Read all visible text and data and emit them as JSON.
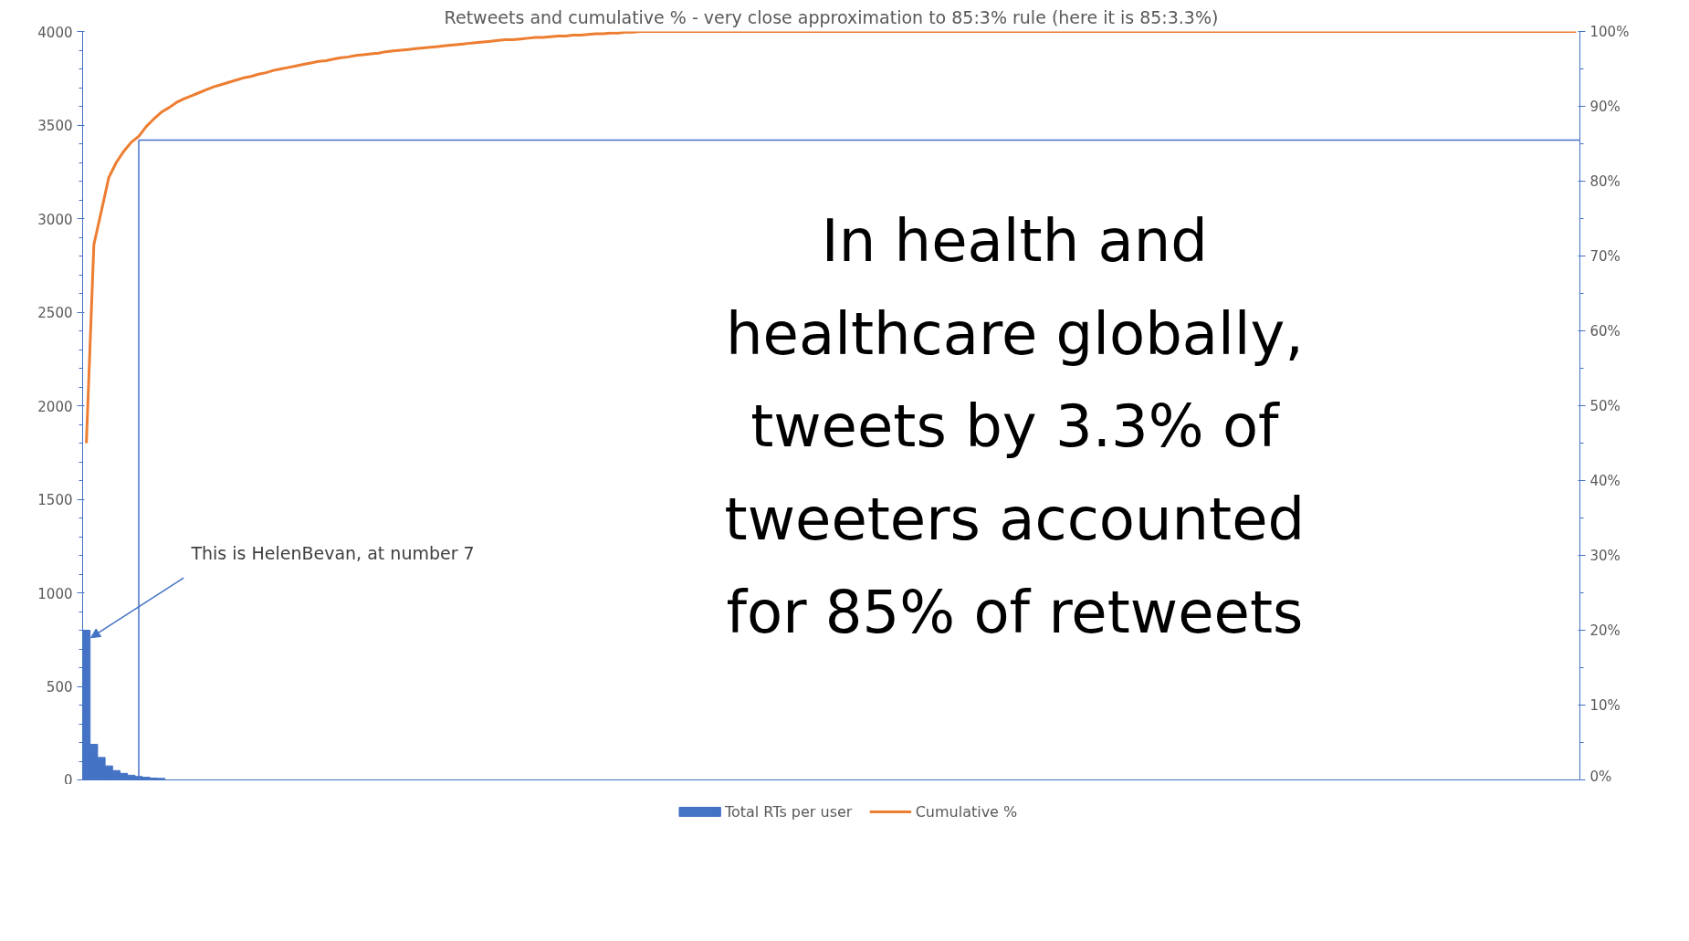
{
  "chart_data": {
    "type": "bar",
    "title": "Retweets and cumulative % - very close approximation to 85:3% rule (here it is 85:3.3%)",
    "categories": [
      null,
      null,
      null,
      null,
      null,
      null,
      null,
      null,
      null,
      null,
      null,
      null,
      null,
      null,
      null,
      null,
      null,
      null,
      null,
      null,
      null,
      null,
      null,
      null,
      null,
      null,
      null,
      null,
      null,
      null,
      null,
      null,
      null,
      null,
      null,
      null,
      null,
      null,
      null,
      null,
      null,
      null,
      null,
      null,
      null,
      null,
      null,
      null,
      null,
      null,
      null,
      null,
      null,
      null,
      null,
      null,
      null,
      null,
      null,
      null,
      null,
      null,
      null,
      null,
      null,
      null,
      null,
      null,
      null,
      null,
      null,
      null,
      null,
      null,
      null,
      null,
      null,
      null,
      null,
      null,
      null,
      null,
      null,
      null,
      null,
      null,
      null,
      null,
      null,
      null,
      null,
      null,
      null,
      null,
      null,
      null,
      null,
      null,
      null,
      null,
      null,
      null,
      null,
      null,
      null,
      null,
      null,
      null,
      null,
      null,
      null,
      null,
      null,
      null,
      null,
      null,
      null,
      null,
      null,
      null,
      null,
      null,
      null,
      null,
      null,
      null,
      null,
      null,
      null,
      null,
      null,
      null,
      null,
      null,
      null,
      null,
      null,
      null,
      null,
      null,
      null,
      null,
      null,
      null,
      null,
      null,
      null,
      null,
      null,
      null,
      null,
      null,
      null,
      null,
      null,
      null,
      null,
      null,
      null,
      null,
      null,
      null,
      null,
      null,
      null,
      null,
      null,
      null,
      null,
      null,
      null,
      null,
      null,
      null,
      null,
      null,
      null,
      null,
      null,
      null,
      null,
      null,
      null,
      null,
      null,
      null,
      null,
      null,
      null,
      null,
      null,
      null,
      null,
      null,
      null,
      null,
      null,
      null,
      null,
      null
    ],
    "series": [
      {
        "name": "Total RTs per user",
        "color": "#4472c4",
        "values": [
          800,
          190,
          120,
          75,
          50,
          35,
          25,
          18,
          14,
          10,
          8,
          0,
          0,
          0,
          0,
          0,
          0,
          0,
          0,
          0,
          0,
          0,
          0,
          0,
          0,
          0,
          0,
          0,
          0,
          0,
          0,
          0,
          0,
          0,
          0,
          0,
          0,
          0,
          0,
          0,
          0,
          0,
          0,
          0,
          0,
          0,
          0,
          0,
          0,
          0,
          0,
          0,
          0,
          0,
          0,
          0,
          0,
          0,
          0,
          0,
          0,
          0,
          0,
          0,
          0,
          0,
          0,
          0,
          0,
          0,
          0,
          0,
          0,
          0,
          0,
          0,
          0,
          0,
          0,
          0,
          0,
          0,
          0,
          0,
          0,
          0,
          0,
          0,
          0,
          0,
          0,
          0,
          0,
          0,
          0,
          0,
          0,
          0,
          0,
          0,
          0,
          0,
          0,
          0,
          0,
          0,
          0,
          0,
          0,
          0,
          0,
          0,
          0,
          0,
          0,
          0,
          0,
          0,
          0,
          0,
          0,
          0,
          0,
          0,
          0,
          0,
          0,
          0,
          0,
          0,
          0,
          0,
          0,
          0,
          0,
          0,
          0,
          0,
          0,
          0,
          0,
          0,
          0,
          0,
          0,
          0,
          0,
          0,
          0,
          0,
          0,
          0,
          0,
          0,
          0,
          0,
          0,
          0,
          0,
          0,
          0,
          0,
          0,
          0,
          0,
          0,
          0,
          0,
          0,
          0,
          0,
          0,
          0,
          0,
          0,
          0,
          0,
          0,
          0,
          0,
          0,
          0,
          0,
          0,
          0,
          0,
          0,
          0,
          0,
          0,
          0,
          0,
          0,
          0,
          0,
          0,
          0,
          0,
          0,
          0
        ]
      },
      {
        "name": "Cumulative %",
        "type": "line",
        "axis": "y2",
        "color": "#ed7d31",
        "values": [
          45,
          71.5,
          76,
          80.5,
          82.5,
          84,
          85.2,
          86,
          87.3,
          88.3,
          89.2,
          89.8,
          90.5,
          91,
          91.4,
          91.8,
          92.2,
          92.6,
          92.9,
          93.2,
          93.5,
          93.8,
          94,
          94.3,
          94.5,
          94.8,
          95,
          95.2,
          95.4,
          95.6,
          95.8,
          96,
          96.1,
          96.3,
          96.5,
          96.6,
          96.8,
          96.9,
          97,
          97.1,
          97.3,
          97.4,
          97.5,
          97.6,
          97.7,
          97.8,
          97.9,
          98,
          98.1,
          98.2,
          98.3,
          98.4,
          98.5,
          98.6,
          98.7,
          98.8,
          98.9,
          98.9,
          99,
          99.1,
          99.2,
          99.2,
          99.3,
          99.4,
          99.4,
          99.5,
          99.5,
          99.6,
          99.7,
          99.7,
          99.8,
          99.8,
          99.9,
          99.9,
          100,
          100,
          100,
          100,
          100,
          100,
          100,
          100,
          100,
          100,
          100,
          100,
          100,
          100,
          100,
          100,
          100,
          100,
          100,
          100,
          100,
          100,
          100,
          100,
          100,
          100,
          100,
          100,
          100,
          100,
          100,
          100,
          100,
          100,
          100,
          100,
          100,
          100,
          100,
          100,
          100,
          100,
          100,
          100,
          100,
          100,
          100,
          100,
          100,
          100,
          100,
          100,
          100,
          100,
          100,
          100,
          100,
          100,
          100,
          100,
          100,
          100,
          100,
          100,
          100,
          100,
          100,
          100,
          100,
          100,
          100,
          100,
          100,
          100,
          100,
          100,
          100,
          100,
          100,
          100,
          100,
          100,
          100,
          100,
          100,
          100,
          100,
          100,
          100,
          100,
          100,
          100,
          100,
          100,
          100,
          100,
          100,
          100,
          100,
          100,
          100,
          100,
          100,
          100,
          100,
          100,
          100,
          100,
          100,
          100,
          100,
          100,
          100,
          100,
          100,
          100,
          100,
          100,
          100,
          100,
          100,
          100,
          100,
          100,
          100,
          100
        ]
      }
    ],
    "ylim": [
      0,
      4000
    ],
    "yticks": [
      0,
      500,
      1000,
      1500,
      2000,
      2500,
      3000,
      3500,
      4000
    ],
    "y2lim": [
      0,
      100
    ],
    "y2ticks": [
      {
        "value": 0,
        "label": "0%"
      },
      {
        "value": 10,
        "label": "10%"
      },
      {
        "value": 20,
        "label": "20%"
      },
      {
        "value": 30,
        "label": "30%"
      },
      {
        "value": 40,
        "label": "40%"
      },
      {
        "value": 50,
        "label": "50%"
      },
      {
        "value": 60,
        "label": "60%"
      },
      {
        "value": 70,
        "label": "70%"
      },
      {
        "value": 80,
        "label": "80%"
      },
      {
        "value": 90,
        "label": "90%"
      },
      {
        "value": 100,
        "label": "100%"
      }
    ],
    "ref_lines": [
      {
        "axis": "y2",
        "value": 85.5,
        "color": "#4472c4"
      }
    ],
    "annotations": [
      "This is HelenBevan, at number 7",
      "In health and healthcare globally, tweets by 3.3% of tweeters accounted for 85% of retweets"
    ],
    "legend": "bottom",
    "grid": false
  }
}
